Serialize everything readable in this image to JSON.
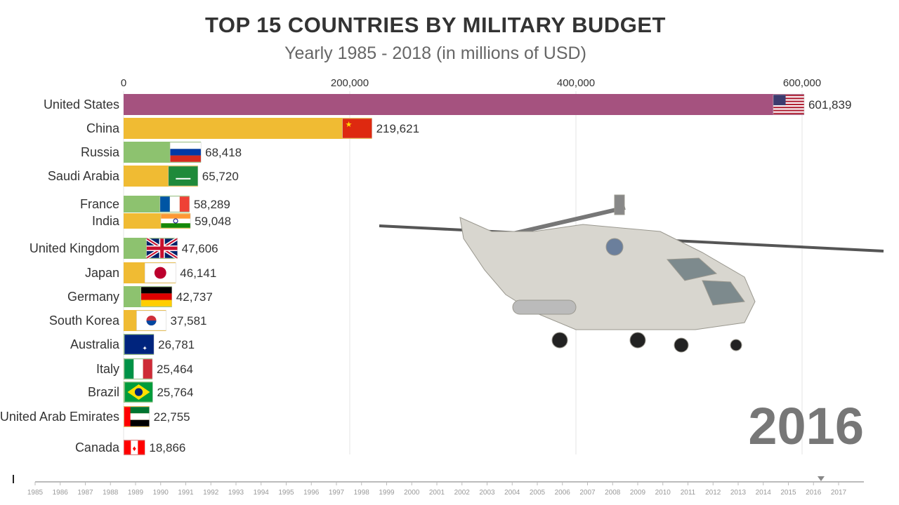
{
  "title": "TOP 15 COUNTRIES BY MILITARY BUDGET",
  "subtitle": "Yearly 1985 - 2018 (in millions of USD)",
  "current_year": "2016",
  "chart_data": {
    "type": "bar",
    "orientation": "horizontal",
    "title": "TOP 15 COUNTRIES BY MILITARY BUDGET",
    "subtitle": "Yearly 1985 - 2018 (in millions of USD)",
    "xlim": [
      0,
      620000
    ],
    "x_ticks": [
      0,
      200000,
      400000,
      600000
    ],
    "x_tick_labels": [
      "0",
      "200,000",
      "400,000",
      "600,000"
    ],
    "grid": true,
    "categories": [
      "United States",
      "China",
      "Russia",
      "Saudi Arabia",
      "France",
      "India",
      "United Kingdom",
      "Japan",
      "Germany",
      "South Korea",
      "Australia",
      "Italy",
      "Brazil",
      "United Arab Emirates",
      "Canada"
    ],
    "values": [
      601839,
      219621,
      68418,
      65720,
      58289,
      59048,
      47606,
      46141,
      42737,
      37581,
      26781,
      25464,
      25764,
      22755,
      18866
    ],
    "value_labels": [
      "601,839",
      "219,621",
      "68,418",
      "65,720",
      "58,289",
      "59,048",
      "47,606",
      "46,141",
      "42,737",
      "37,581",
      "26,781",
      "25,464",
      "25,764",
      "22,755",
      "18,866"
    ],
    "bar_colors": [
      "#a5527f",
      "#f0bb33",
      "#8dc26f",
      "#f0bb33",
      "#8dc26f",
      "#f0bb33",
      "#8dc26f",
      "#f0bb33",
      "#8dc26f",
      "#f0bb33",
      "#8dc26f",
      "#8dc26f",
      "#8dc26f",
      "#f0bb33",
      "#e06a6a"
    ],
    "flags": [
      "us",
      "cn",
      "ru",
      "sa",
      "fr",
      "in",
      "gb",
      "jp",
      "de",
      "kr",
      "au",
      "it",
      "br",
      "ae",
      "ca"
    ]
  },
  "timeline": {
    "years": [
      "1985",
      "1986",
      "1987",
      "1988",
      "1989",
      "1990",
      "1991",
      "1992",
      "1993",
      "1994",
      "1995",
      "1996",
      "1997",
      "1998",
      "1999",
      "2000",
      "2001",
      "2002",
      "2003",
      "2004",
      "2005",
      "2006",
      "2007",
      "2008",
      "2009",
      "2010",
      "2011",
      "2012",
      "2013",
      "2014",
      "2015",
      "2016",
      "2017"
    ],
    "position": 2016.3
  }
}
